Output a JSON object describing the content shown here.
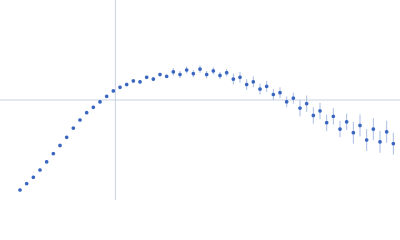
{
  "chart_data": {
    "type": "scatter",
    "x": [
      0.3,
      0.4,
      0.5,
      0.6,
      0.7,
      0.8,
      0.9,
      1.0,
      1.1,
      1.2,
      1.3,
      1.4,
      1.5,
      1.6,
      1.7,
      1.8,
      1.9,
      2.0,
      2.1,
      2.2,
      2.3,
      2.4,
      2.5,
      2.6,
      2.7,
      2.8,
      2.9,
      3.0,
      3.1,
      3.2,
      3.3,
      3.4,
      3.5,
      3.6,
      3.7,
      3.8,
      3.9,
      4.0,
      4.1,
      4.2,
      4.3,
      4.4,
      4.5,
      4.6,
      4.7,
      4.8,
      4.9,
      5.0,
      5.1,
      5.2,
      5.3,
      5.4,
      5.5,
      5.6,
      5.7,
      5.8,
      5.9
    ],
    "values": [
      0.11,
      0.18,
      0.25,
      0.33,
      0.42,
      0.51,
      0.6,
      0.69,
      0.79,
      0.88,
      0.96,
      1.02,
      1.08,
      1.14,
      1.2,
      1.24,
      1.27,
      1.31,
      1.3,
      1.35,
      1.33,
      1.38,
      1.36,
      1.41,
      1.38,
      1.43,
      1.39,
      1.44,
      1.38,
      1.42,
      1.37,
      1.4,
      1.33,
      1.35,
      1.27,
      1.3,
      1.22,
      1.25,
      1.16,
      1.18,
      1.08,
      1.12,
      1.01,
      1.06,
      0.93,
      0.98,
      0.85,
      0.92,
      0.78,
      0.86,
      0.74,
      0.82,
      0.66,
      0.78,
      0.64,
      0.75,
      0.62
    ],
    "errors": [
      0.01,
      0.01,
      0.01,
      0.01,
      0.01,
      0.01,
      0.01,
      0.01,
      0.01,
      0.01,
      0.01,
      0.01,
      0.02,
      0.02,
      0.02,
      0.02,
      0.02,
      0.02,
      0.02,
      0.02,
      0.02,
      0.02,
      0.02,
      0.04,
      0.04,
      0.04,
      0.04,
      0.04,
      0.04,
      0.04,
      0.04,
      0.04,
      0.06,
      0.06,
      0.06,
      0.06,
      0.06,
      0.06,
      0.06,
      0.06,
      0.06,
      0.06,
      0.09,
      0.09,
      0.09,
      0.09,
      0.09,
      0.09,
      0.09,
      0.09,
      0.12,
      0.12,
      0.12,
      0.12,
      0.12,
      0.12,
      0.12
    ],
    "color": "#3a66c0",
    "error_color": "#a9bce4",
    "reference_lines": {
      "x": 1.73,
      "y": 1.1,
      "color": "#c9d1e0"
    },
    "xlim": [
      0,
      6
    ],
    "ylim": [
      0,
      2.2
    ]
  }
}
